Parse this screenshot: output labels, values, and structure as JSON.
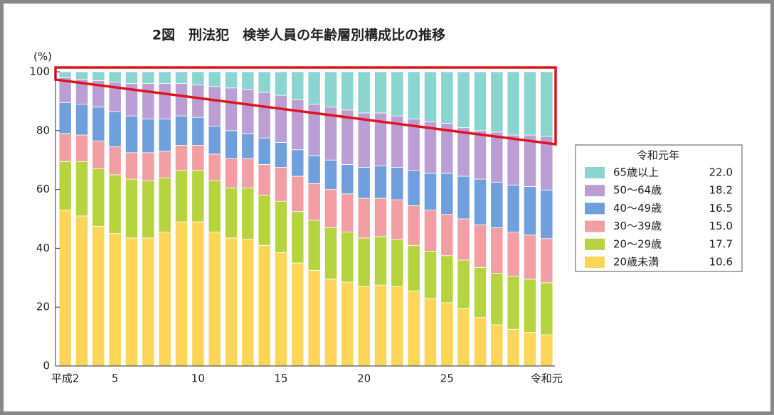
{
  "chart_data": {
    "type": "stacked_bar",
    "title": "2図　刑法犯　検挙人員の年齢層別構成比の推移",
    "y_unit": "(%)",
    "categories": [
      "平成2",
      null,
      null,
      "5",
      null,
      null,
      null,
      null,
      "10",
      null,
      null,
      null,
      null,
      "15",
      null,
      null,
      null,
      null,
      "20",
      null,
      null,
      null,
      null,
      "25",
      null,
      null,
      null,
      null,
      null,
      "令和元"
    ],
    "ylim": [
      0,
      100
    ],
    "yticks": [
      0,
      20,
      40,
      60,
      80,
      100
    ],
    "legend_title": "令和元年",
    "series": [
      {
        "name": "20歳未満",
        "color": "#fdd558",
        "legend_value": "10.6",
        "values": [
          53,
          51,
          47.5,
          45,
          43.5,
          43.5,
          45.5,
          49,
          49,
          45.5,
          43.5,
          43,
          41,
          38.5,
          35,
          32.5,
          29.5,
          28.5,
          27,
          27.5,
          27,
          25.5,
          23,
          21.5,
          19.5,
          16.5,
          14,
          12.5,
          11.5,
          10.6
        ]
      },
      {
        "name": "20～29歳",
        "color": "#b6d43f",
        "legend_value": "17.7",
        "values": [
          16.5,
          18.5,
          19.5,
          20,
          20,
          19.5,
          18.5,
          17.5,
          17.5,
          17.5,
          17,
          17.5,
          17,
          17.5,
          17.5,
          17,
          17.5,
          17,
          16.5,
          16.5,
          16,
          15.5,
          16,
          16,
          16.5,
          17,
          17.5,
          18,
          18,
          17.7
        ]
      },
      {
        "name": "30～39歳",
        "color": "#f29ea2",
        "legend_value": "15.0",
        "values": [
          9.5,
          9,
          9.5,
          9.5,
          9,
          9.5,
          9,
          8.5,
          8.5,
          9,
          10,
          10,
          10.5,
          11.5,
          12,
          12.5,
          13,
          13,
          13.5,
          13,
          13.5,
          13.5,
          14,
          14,
          14,
          14.5,
          15.5,
          15,
          15,
          15.0
        ]
      },
      {
        "name": "40～49歳",
        "color": "#6f9fdc",
        "legend_value": "16.5",
        "values": [
          10.5,
          10.5,
          11.5,
          12,
          12.5,
          11.5,
          11,
          10,
          9.5,
          9.5,
          9.5,
          8.5,
          9,
          8.5,
          9,
          9.5,
          10,
          10,
          10.5,
          11,
          11,
          12,
          12.5,
          14,
          14.5,
          15.5,
          15.5,
          16,
          16.5,
          16.5
        ]
      },
      {
        "name": "50～64歳",
        "color": "#bb9ed3",
        "legend_value": "18.2",
        "values": [
          8.5,
          8.5,
          9,
          10,
          11,
          12,
          12,
          11,
          11,
          13.5,
          14.5,
          15,
          15.5,
          16,
          17,
          17.5,
          18,
          18.5,
          18.5,
          18,
          17.5,
          17.5,
          17.5,
          17,
          16.5,
          16.5,
          17,
          17,
          17.5,
          18.2
        ]
      },
      {
        "name": "65歳以上",
        "color": "#8ad5cf",
        "legend_value": "22.0",
        "values": [
          2,
          2.5,
          3,
          3.5,
          4,
          4,
          4,
          4,
          4.5,
          5,
          5.5,
          6,
          7,
          8,
          9.5,
          11,
          12,
          13,
          14,
          14,
          15,
          16,
          17,
          17.5,
          19,
          20,
          20.5,
          21.5,
          21.5,
          22.0
        ]
      }
    ]
  }
}
